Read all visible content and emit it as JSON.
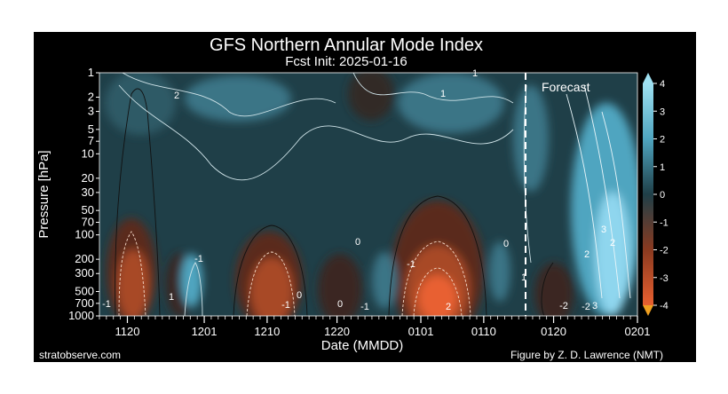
{
  "chart_data": {
    "type": "heatmap",
    "title": "GFS Northern Annular Mode Index",
    "subtitle": "Fcst Init: 2025-01-16",
    "xlabel": "Date (MMDD)",
    "ylabel": "Pressure [hPa]",
    "x_ticks": [
      "1120",
      "1201",
      "1210",
      "1220",
      "0101",
      "0110",
      "0120",
      "0201"
    ],
    "y_ticks": [
      1,
      2,
      3,
      5,
      7,
      10,
      20,
      30,
      50,
      70,
      100,
      200,
      300,
      500,
      700,
      1000
    ],
    "y_scale": "log",
    "ylim": [
      1000,
      1
    ],
    "colorbar_ticks": [
      4,
      3,
      2,
      1,
      0,
      -1,
      -2,
      -3,
      -4
    ],
    "colorbar_range": [
      -4,
      4
    ],
    "forecast_label": "Forecast",
    "contour_labels": [
      "1",
      "2",
      "1",
      "-1",
      "3",
      "2",
      "0",
      "-1",
      "-1",
      "0",
      "-1",
      "0",
      "2",
      "1",
      "-2",
      "0",
      "2",
      "-2",
      "3",
      "1",
      "-1"
    ],
    "colors": {
      "background": "#000000",
      "positive_max": "#7fd0ea",
      "neutral": "#1f3f48",
      "negative_max": "#e86030",
      "forecast_line": "#ffffff"
    }
  },
  "footer": {
    "left": "stratobserve.com",
    "right": "Figure by Z. D. Lawrence (NMT)"
  }
}
